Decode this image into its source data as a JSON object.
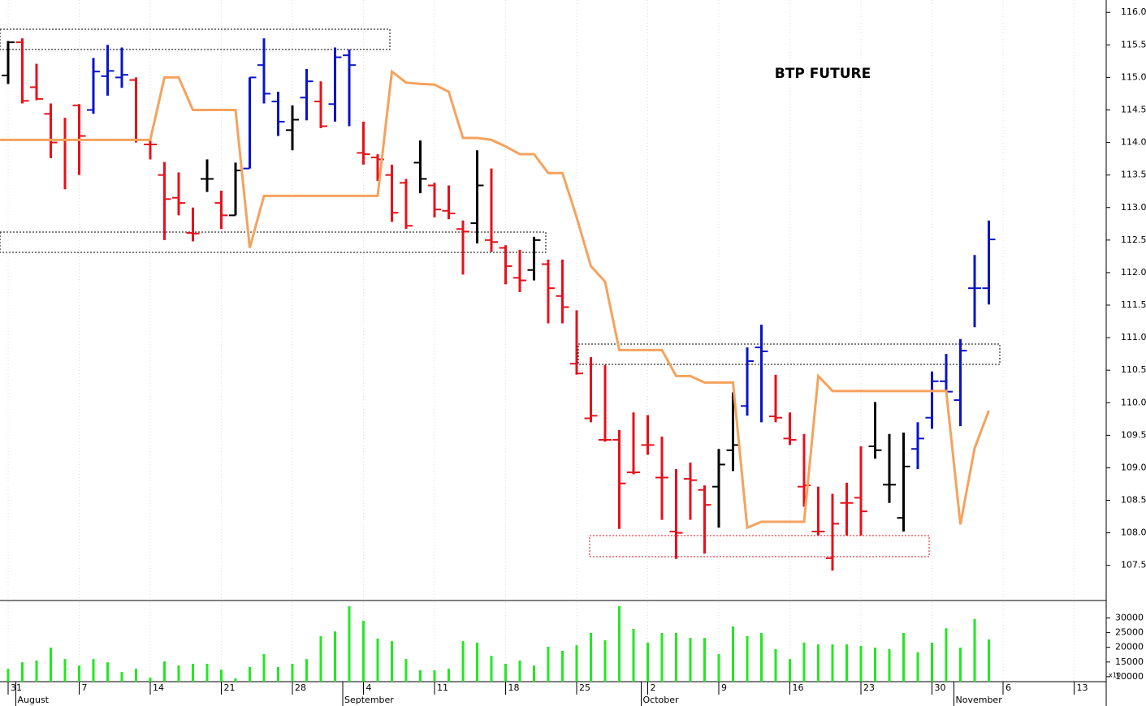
{
  "chart_data": [
    {
      "type": "ohlc",
      "title": "BTP FUTURE",
      "open": [
        115.03,
        115.54,
        114.85,
        114.44,
        114.04,
        114.57,
        114.5,
        115.02,
        115.0,
        114.96,
        113.97,
        113.5,
        113.15,
        112.61,
        113.44,
        113.07,
        112.88,
        113.6,
        115.19,
        114.63,
        114.19,
        114.69,
        114.63,
        114.59,
        115.34,
        113.84,
        113.77,
        113.5,
        113.38,
        113.69,
        113.34,
        112.95,
        112.67,
        112.76,
        112.5,
        112.38,
        111.92,
        112.04,
        112.13,
        111.64,
        110.6,
        109.76,
        109.43,
        109.43,
        108.93,
        109.35,
        108.85,
        108.02,
        108.83,
        108.66,
        108.71,
        109.27,
        109.95,
        110.85,
        109.79,
        109.45,
        108.71,
        108.02,
        107.61,
        108.46,
        108.54,
        109.33,
        108.74,
        108.23,
        109.29,
        109.77,
        110.33,
        110.04,
        111.76,
        111.76,
        null,
        null,
        null,
        null,
        null,
        null,
        null,
        null
      ],
      "high": [
        115.56,
        115.6,
        115.21,
        114.6,
        114.38,
        114.59,
        115.3,
        115.5,
        115.46,
        115.0,
        114.04,
        113.7,
        113.54,
        113.0,
        113.74,
        113.26,
        113.69,
        115.0,
        115.6,
        114.78,
        114.57,
        115.13,
        114.94,
        115.46,
        115.43,
        114.32,
        113.82,
        113.66,
        113.44,
        114.03,
        113.38,
        113.34,
        112.8,
        113.88,
        113.6,
        112.42,
        112.35,
        112.55,
        112.2,
        112.2,
        111.42,
        110.7,
        110.58,
        109.58,
        109.85,
        109.81,
        109.48,
        108.98,
        109.08,
        108.73,
        109.29,
        110.16,
        110.85,
        111.2,
        110.43,
        109.85,
        109.52,
        108.71,
        108.6,
        108.77,
        109.33,
        110.01,
        109.52,
        109.54,
        109.7,
        110.48,
        110.75,
        110.98,
        112.27,
        112.8,
        null,
        null,
        null,
        null,
        null,
        null,
        null,
        null
      ],
      "low": [
        114.9,
        114.6,
        114.65,
        113.76,
        113.28,
        113.5,
        114.44,
        114.72,
        114.84,
        114.0,
        113.74,
        112.5,
        112.88,
        112.48,
        113.24,
        112.67,
        112.88,
        113.6,
        114.6,
        114.1,
        113.88,
        114.34,
        114.22,
        114.32,
        114.25,
        113.66,
        113.41,
        112.78,
        112.67,
        113.22,
        112.85,
        112.82,
        111.97,
        112.45,
        112.32,
        111.82,
        111.7,
        111.88,
        111.22,
        111.22,
        110.43,
        109.7,
        109.4,
        108.06,
        108.9,
        109.2,
        108.2,
        107.6,
        108.2,
        107.68,
        108.08,
        108.95,
        109.8,
        109.7,
        109.7,
        109.35,
        108.4,
        107.96,
        107.42,
        107.96,
        107.96,
        109.14,
        108.46,
        108.02,
        108.98,
        109.6,
        110.16,
        109.64,
        111.16,
        111.51,
        null,
        null,
        null,
        null,
        null,
        null,
        null,
        null
      ],
      "close": [
        115.54,
        114.64,
        114.67,
        114.0,
        114.04,
        114.1,
        115.09,
        115.1,
        115.04,
        114.04,
        113.97,
        113.13,
        113.07,
        112.6,
        113.44,
        112.88,
        113.57,
        115.0,
        114.75,
        114.32,
        114.35,
        114.94,
        114.25,
        115.31,
        115.19,
        113.82,
        113.74,
        112.92,
        112.72,
        113.44,
        112.97,
        112.91,
        112.63,
        113.34,
        112.47,
        112.1,
        111.88,
        112.5,
        111.76,
        111.47,
        110.45,
        109.8,
        109.43,
        108.76,
        108.93,
        109.35,
        108.85,
        108.0,
        108.81,
        108.43,
        109.05,
        109.35,
        110.64,
        110.79,
        109.77,
        109.43,
        108.73,
        108.02,
        108.14,
        108.46,
        108.33,
        109.27,
        108.74,
        109.02,
        109.45,
        110.33,
        110.17,
        110.8,
        111.76,
        112.51,
        null,
        null,
        null,
        null,
        null,
        null,
        null,
        null
      ],
      "bar_colors": [
        "#000000",
        "#e8101a",
        "#e8101a",
        "#e8101a",
        "#e8101a",
        "#e8101a",
        "#0a14c8",
        "#0a14c8",
        "#0a14c8",
        "#e8101a",
        "#e8101a",
        "#e8101a",
        "#e8101a",
        "#e8101a",
        "#000000",
        "#e8101a",
        "#000000",
        "#0a14c8",
        "#0a14c8",
        "#0a14c8",
        "#000000",
        "#0a14c8",
        "#e8101a",
        "#0a14c8",
        "#0a14c8",
        "#e8101a",
        "#e8101a",
        "#e8101a",
        "#e8101a",
        "#000000",
        "#e8101a",
        "#e8101a",
        "#e8101a",
        "#000000",
        "#e8101a",
        "#e8101a",
        "#e8101a",
        "#000000",
        "#e8101a",
        "#e8101a",
        "#e8101a",
        "#e8101a",
        "#e8101a",
        "#e8101a",
        "#e8101a",
        "#e8101a",
        "#e8101a",
        "#e8101a",
        "#e8101a",
        "#e8101a",
        "#000000",
        "#000000",
        "#0a14c8",
        "#0a14c8",
        "#e8101a",
        "#e8101a",
        "#e8101a",
        "#e8101a",
        "#e8101a",
        "#e8101a",
        "#e8101a",
        "#000000",
        "#000000",
        "#000000",
        "#0a14c8",
        "#0a14c8",
        "#0a14c8",
        "#0a14c8",
        "#0a14c8",
        "#0a14c8",
        null,
        null,
        null,
        null,
        null,
        null,
        null,
        null
      ],
      "line": {
        "color": "#f5a25d",
        "values": [
          114.04,
          114.04,
          114.04,
          114.04,
          114.04,
          114.04,
          114.04,
          114.04,
          114.04,
          114.04,
          114.04,
          115.0,
          115.0,
          114.5,
          114.5,
          114.5,
          114.5,
          112.38,
          113.18,
          113.18,
          113.18,
          113.18,
          113.18,
          113.18,
          113.18,
          113.18,
          113.18,
          115.09,
          114.92,
          114.9,
          114.89,
          114.78,
          114.07,
          114.07,
          114.04,
          113.94,
          113.82,
          113.82,
          113.53,
          113.53,
          112.85,
          112.1,
          111.86,
          110.81,
          110.81,
          110.81,
          110.81,
          110.41,
          110.41,
          110.31,
          110.31,
          110.31,
          108.08,
          108.17,
          108.17,
          108.17,
          108.17,
          110.41,
          110.18,
          110.18,
          110.18,
          110.18,
          110.18,
          110.18,
          110.18,
          110.18,
          110.18,
          108.13,
          109.3,
          109.88,
          null,
          null,
          null,
          null,
          null,
          null,
          null,
          null
        ]
      },
      "ylim": [
        106.96,
        116.19
      ],
      "yticks": [
        {
          "value": 107.5,
          "label": "107.5"
        },
        {
          "value": 108,
          "label": "108.0"
        },
        {
          "value": 108.5,
          "label": "108.5"
        },
        {
          "value": 109,
          "label": "109.0"
        },
        {
          "value": 109.5,
          "label": "109.5"
        },
        {
          "value": 110,
          "label": "110.0"
        },
        {
          "value": 110.5,
          "label": "110.5"
        },
        {
          "value": 111,
          "label": "111.0"
        },
        {
          "value": 111.5,
          "label": "111.5"
        },
        {
          "value": 112,
          "label": "112.0"
        },
        {
          "value": 112.5,
          "label": "112.5"
        },
        {
          "value": 113,
          "label": "113.0"
        },
        {
          "value": 113.5,
          "label": "113.5"
        },
        {
          "value": 114,
          "label": "114.0"
        },
        {
          "value": 114.5,
          "label": "114.5"
        },
        {
          "value": 115,
          "label": "115.0"
        },
        {
          "value": 115.5,
          "label": "115.5"
        },
        {
          "value": 116,
          "label": "116.0"
        }
      ]
    },
    {
      "type": "bar",
      "categories": [
        "31",
        null,
        null,
        null,
        null,
        "7",
        null,
        null,
        null,
        null,
        "14",
        null,
        null,
        null,
        null,
        "21",
        null,
        null,
        null,
        null,
        "28",
        null,
        null,
        null,
        null,
        "4",
        null,
        null,
        null,
        null,
        "11",
        null,
        null,
        null,
        null,
        "18",
        null,
        null,
        null,
        null,
        "25",
        null,
        null,
        null,
        null,
        "2",
        null,
        null,
        null,
        null,
        "9",
        null,
        null,
        null,
        null,
        "16",
        null,
        null,
        null,
        null,
        "23",
        null,
        null,
        null,
        null,
        "30",
        null,
        null,
        null,
        null,
        "6",
        null,
        null,
        null,
        null,
        "13",
        null,
        null
      ],
      "months": [
        "August",
        "September",
        "October",
        "November"
      ],
      "values": [
        12700,
        14900,
        15500,
        19900,
        16000,
        13800,
        16000,
        14900,
        11600,
        12700,
        9700,
        15200,
        13800,
        14400,
        14400,
        12400,
        9400,
        13300,
        17700,
        13300,
        14400,
        16000,
        23800,
        25400,
        34000,
        29000,
        23000,
        22100,
        16000,
        12200,
        12200,
        12700,
        22100,
        21600,
        17100,
        14400,
        15500,
        13800,
        20200,
        18800,
        20700,
        24900,
        22400,
        34000,
        26300,
        21600,
        24900,
        24900,
        23200,
        23200,
        17700,
        27100,
        23800,
        24900,
        19400,
        16000,
        21600,
        21000,
        21000,
        21000,
        20500,
        19900,
        19400,
        24900,
        18300,
        21600,
        26500,
        19900,
        29600,
        22700,
        null,
        null,
        null,
        null,
        null,
        null,
        null,
        null
      ],
      "color": "#22e822",
      "unit_label": "x10",
      "ylim": [
        8300,
        35400
      ],
      "yticks": [
        10000,
        15000,
        20000,
        25000,
        30000
      ]
    }
  ]
}
